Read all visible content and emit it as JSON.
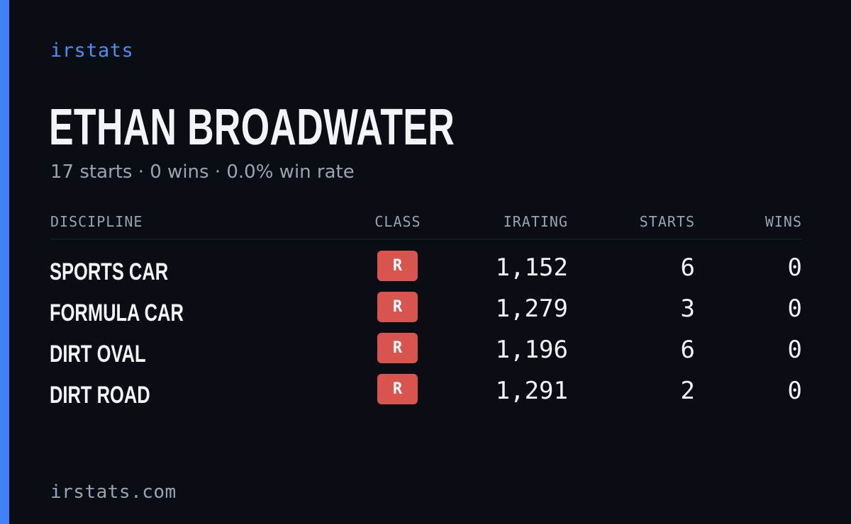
{
  "brand": "irstats",
  "driver": {
    "name": "ETHAN BROADWATER",
    "summary": "17 starts · 0 wins · 0.0% win rate"
  },
  "table": {
    "headers": {
      "discipline": "DISCIPLINE",
      "class": "CLASS",
      "irating": "IRATING",
      "starts": "STARTS",
      "wins": "WINS"
    },
    "rows": [
      {
        "discipline": "SPORTS CAR",
        "class": "R",
        "irating": "1,152",
        "starts": "6",
        "wins": "0"
      },
      {
        "discipline": "FORMULA CAR",
        "class": "R",
        "irating": "1,279",
        "starts": "3",
        "wins": "0"
      },
      {
        "discipline": "DIRT OVAL",
        "class": "R",
        "irating": "1,196",
        "starts": "6",
        "wins": "0"
      },
      {
        "discipline": "DIRT ROAD",
        "class": "R",
        "irating": "1,291",
        "starts": "2",
        "wins": "0"
      }
    ]
  },
  "footer": {
    "url": "irstats.com"
  },
  "colors": {
    "background": "#0a0d14",
    "accent": "#3f83f8",
    "class_r_badge": "#d9534f",
    "text_primary": "#f2f4f8",
    "text_muted": "#9aa3b2"
  }
}
